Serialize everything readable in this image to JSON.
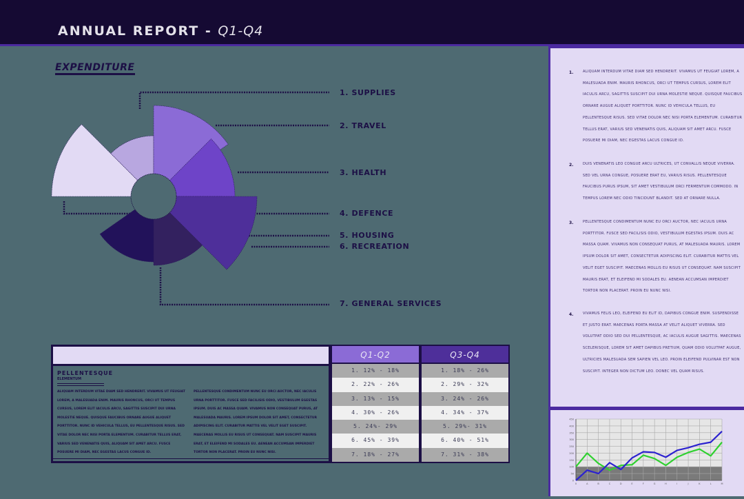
{
  "header": {
    "title": "ANNUAL REPORT - ",
    "subtitle": "Q1-Q4"
  },
  "colors": {
    "header_bg": "#150a33",
    "accent": "#4b2aa0",
    "main_bg": "#4e6a72",
    "panel_bg": "#e2daf4",
    "dark": "#1c0f45",
    "q1q2_header": "#8b6bd6",
    "q3q4_header": "#4e2f9a",
    "line_blue": "#2c22d0",
    "line_green": "#2fd12f"
  },
  "expenditure": {
    "title": "EXPENDITURE",
    "labels": [
      "1. SUPPLIES",
      "2. TRAVEL",
      "3. HEALTH",
      "4. DEFENCE",
      "5. HOUSING",
      "6. RECREATION",
      "7. GENERAL SERVICES"
    ]
  },
  "table": {
    "left": {
      "heading": "PELLENTESQUE",
      "subheading": "ELEMENTUM",
      "col1": "ALIQUAM INTERDUM VITAE DIAM SED HENDRERIT. VIVAMUS UT FEUGIAT LOREM, A MALESUADA ENIM. MAURIS RHONCUS, ORCI UT TEMPUS CURSUS, LOREM ELIT IACULIS ARCU, SAGITTIS SUSCIPIT DUI URNA MOLESTIE NEQUE. QUISQUE FAUCIBUS ORNARE AUGUE ALIQUET PORTTITOR. NUNC ID VEHICULA TELLUS, EU PELLENTESQUE RISUS. SED VITAE DOLOR NEC NISI PORTA ELEMENTUM. CURABITUR TELLUS ERAT, VARIUS SED VENENATIS QUIS, ALIQUAM SIT AMET ARCU. FUSCE POSUERE MI DIAM, NEC EGESTAS LACUS CONGUE ID.",
      "col2": "PELLENTESQUE CONDIMENTUM NUNC EU ORCI AUCTOR, NEC IACULIS URNA PORTTITOR. FUSCE SED FACILISIS ODIO, VESTIBULUM EGESTAS IPSUM. DUIS AC MASSA QUAM. VIVAMUS NON CONSEQUAT PURUS, AT MALESUADA MAURIS. LOREM IPSUM DOLOR SIT AMET, CONSECTETUR ADIPISCING ELIT. CURABITUR MATTIS VEL VELIT EGET SUSCIPIT. MAECENAS MOLLIS EU RISUS UT CONSEQUAT. NAM SUSCIPIT MAURIS ERAT, ET ELEIFEND MI SODALES EU. AENEAN ACCUMSAN IMPERDIET TORTOR NON PLACERAT. PROIN EU NUNC NISI."
    },
    "q1q2": {
      "header": "Q1-Q2",
      "rows": [
        "1. 12% - 18%",
        "2. 22% - 26%",
        "3. 13% - 15%",
        "4. 30% - 26%",
        "5. 24%- 29%",
        "6. 45% - 39%",
        "7. 18% - 27%"
      ]
    },
    "q3q4": {
      "header": "Q3-Q4",
      "rows": [
        "1. 18% - 26%",
        "2. 29% - 32%",
        "3. 24% - 26%",
        "4. 34% - 37%",
        "5. 29%- 31%",
        "6. 40% - 51%",
        "7. 31% - 38%"
      ]
    }
  },
  "notes": [
    {
      "num": "1.",
      "text": "ALIQUAM INTERDUM VITAE DIAM SED HENDRERIT. VIVAMUS UT FEUGIAT LOREM, A MALESUADA ENIM. MAURIS RHONCUS, ORCI UT TEMPUS CURSUS, LOREM ELIT IACULIS ARCU, SAGITTIS SUSCIPIT DUI URNA MOLESTIE NEQUE. QUISQUE FAUCIBUS ORNARE AUGUE ALIQUET PORTTITOR. NUNC ID VEHICULA TELLUS, EU PELLENTESQUE RISUS. SED VITAE DOLOR NEC NISI PORTA ELEMENTUM. CURABITUR TELLUS ERAT, VARIUS SED VENENATIS QUIS, ALIQUAM SIT AMET ARCU. FUSCE POSUERE MI DIAM, NEC EGESTAS LACUS CONGUE ID."
    },
    {
      "num": "2.",
      "text": "DUIS VENENATIS LEO CONGUE ARCU ULTRICES, UT CONVALLIS NEQUE VIVERRA. SED VEL URNA CONGUE, POSUERE ERAT EU, VARIUS RISUS. PELLENTESQUE FAUCIBUS PURUS IPSUM, SIT AMET VESTIBULUM ORCI FERMENTUM COMMODO. IN TEMPUS LOREM NEC ODIO TINCIDUNT BLANDIT. SED AT ORNARE NULLA."
    },
    {
      "num": "3.",
      "text": "PELLENTESQUE CONDIMENTUM NUNC EU ORCI AUCTOR, NEC IACULIS URNA PORTTITOR. FUSCE SED FACILISIS ODIO, VESTIBULUM EGESTAS IPSUM. DUIS AC MASSA QUAM. VIVAMUS NON CONSEQUAT PURUS, AT MALESUADA MAURIS. LOREM IPSUM DOLOR SIT AMET, CONSECTETUR ADIPISCING ELIT. CURABITUR MATTIS VEL VELIT EGET SUSCIPIT. MAECENAS MOLLIS EU RISUS UT CONSEQUAT. NAM SUSCIPIT MAURIS ERAT, ET ELEIFEND MI SODALES EU. AENEAN ACCUMSAN IMPERDIET TORTOR NON PLACERAT. PROIN EU NUNC NISI."
    },
    {
      "num": "4.",
      "text": "VIVAMUS FELIS LEO, ELEIFEND EU ELIT ID, DAPIBUS CONGUE ENIM. SUSPENDISSE ET JUSTO ERAT. MAECENAS PORTA MASSA AT VELIT ALIQUET VIVERRA. SED VOLUTPAT ODIO SED DUI PELLENTESQUE, AC IACULIS AUGUE SAGITTIS. MAECENAS SCELERISQUE, LOREM SIT AMET DAPIBUS PRETIUM, QUAM ODIO VOLUTPAT AUGUE, ULTRICIES MALESUADA SEM SAPIEN VEL LEO. PROIN ELEIFEND PULVINAR EST NON SUSCIPIT. INTEGER NON DICTUM LEO. DONEC VEL QUAM RISUS."
    }
  ],
  "chart_data": [
    {
      "type": "pie",
      "title": "EXPENDITURE",
      "variant": "polar-area (rose) with inner hole",
      "categories": [
        "1. SUPPLIES",
        "2. TRAVEL",
        "3. HEALTH",
        "4. DEFENCE",
        "5. HOUSING",
        "6. RECREATION",
        "7. GENERAL SERVICES"
      ],
      "slices": [
        {
          "start_deg": 0,
          "end_deg": 55,
          "radius": 132,
          "color": "#8b6bd6"
        },
        {
          "start_deg": 45,
          "end_deg": 90,
          "radius": 118,
          "color": "#6e44c8"
        },
        {
          "start_deg": 90,
          "end_deg": 135,
          "radius": 150,
          "color": "#4e2f9a"
        },
        {
          "start_deg": 90,
          "end_deg": 180,
          "radius": 100,
          "color": "#33215f"
        },
        {
          "start_deg": 180,
          "end_deg": 235,
          "radius": 95,
          "color": "#22125a"
        },
        {
          "start_deg": 270,
          "end_deg": 315,
          "radius": 148,
          "color": "#e2daf4"
        },
        {
          "start_deg": 315,
          "end_deg": 360,
          "radius": 88,
          "color": "#b8a7e0"
        }
      ]
    },
    {
      "type": "line",
      "title": "",
      "x": [
        "0",
        "A",
        "B",
        "C",
        "D",
        "E",
        "F",
        "G",
        "H",
        "I",
        "J",
        "K",
        "L",
        "M"
      ],
      "series": [
        {
          "name": "blue",
          "color": "#2c22d0",
          "values": [
            0,
            75,
            50,
            130,
            80,
            165,
            210,
            205,
            170,
            220,
            240,
            265,
            280,
            360
          ]
        },
        {
          "name": "green",
          "color": "#2fd12f",
          "values": [
            100,
            200,
            125,
            75,
            110,
            115,
            185,
            160,
            110,
            170,
            205,
            230,
            180,
            280
          ]
        }
      ],
      "yticks": [
        0,
        50,
        100,
        150,
        200,
        250,
        300,
        350,
        400,
        450
      ],
      "ylim": [
        0,
        450
      ],
      "grid": true,
      "shaded_band": [
        0,
        100
      ],
      "xlabel": "",
      "ylabel": ""
    }
  ]
}
